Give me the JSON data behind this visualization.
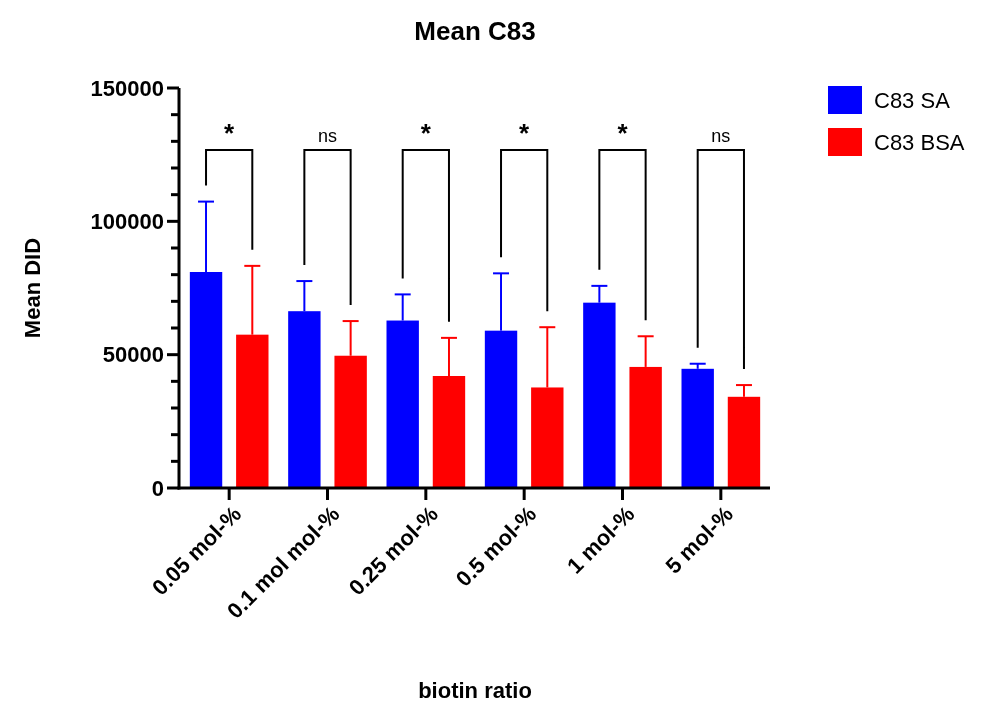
{
  "chart_data": {
    "type": "bar",
    "title": "Mean C83",
    "xlabel": "biotin ratio",
    "ylabel": "Mean DID",
    "categories": [
      "0.05 mol-%",
      "0.1 mol mol-%",
      "0.25 mol-%",
      "0.5 mol-%",
      "1 mol-%",
      "5 mol-%"
    ],
    "series": [
      {
        "name": "C83 SA",
        "color": "#0000ff",
        "values": [
          81000,
          66300,
          62800,
          59000,
          69500,
          44700
        ],
        "errors": [
          [
            81000,
            107400
          ],
          [
            66300,
            77600
          ],
          [
            62800,
            72600
          ],
          [
            59000,
            80500
          ],
          [
            69500,
            75800
          ],
          [
            44700,
            46600
          ]
        ]
      },
      {
        "name": "C83 BSA",
        "color": "#ff0000",
        "values": [
          57500,
          49600,
          42000,
          37700,
          45400,
          34200
        ],
        "errors": [
          [
            57500,
            83300
          ],
          [
            49600,
            62600
          ],
          [
            42000,
            56300
          ],
          [
            37700,
            60300
          ],
          [
            45400,
            56900
          ],
          [
            34200,
            38600
          ]
        ]
      }
    ],
    "ylim": [
      0,
      150000
    ],
    "yticks": [
      0,
      {
        "value": 10000,
        "label": null
      },
      {
        "value": 20000,
        "label": null
      },
      {
        "value": 30000,
        "label": null
      },
      {
        "value": 40000,
        "label": null
      },
      50000,
      {
        "value": 60000,
        "label": null
      },
      {
        "value": 70000,
        "label": null
      },
      {
        "value": 80000,
        "label": null
      },
      {
        "value": 90000,
        "label": null
      },
      100000,
      {
        "value": 110000,
        "label": null
      },
      {
        "value": 120000,
        "label": null
      },
      {
        "value": 130000,
        "label": null
      },
      {
        "value": 140000,
        "label": null
      },
      150000
    ],
    "annotations": [
      "*",
      "ns",
      "*",
      "*",
      "*",
      "ns"
    ],
    "legend": "top right",
    "grid": false
  }
}
